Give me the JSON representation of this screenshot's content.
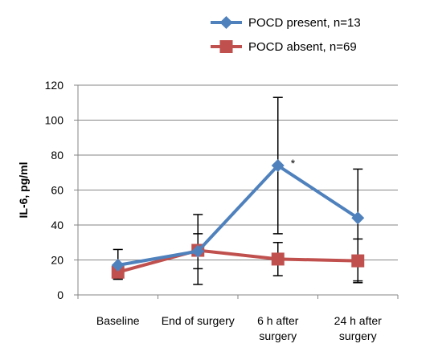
{
  "chart_data": {
    "type": "line",
    "categories": [
      "Baseline",
      "End of surgery",
      "6 h after surgery",
      "24 h after surgery"
    ],
    "category_lines": [
      [
        "Baseline"
      ],
      [
        "End of surgery"
      ],
      [
        "6 h after",
        "surgery"
      ],
      [
        "24 h after",
        "surgery"
      ]
    ],
    "series": [
      {
        "name": "POCD present,  n=13",
        "values": [
          17,
          25,
          74,
          44
        ],
        "err_low": [
          9,
          6,
          35,
          8
        ],
        "err_high": [
          26,
          46,
          113,
          72
        ],
        "color": "#4F81BD",
        "marker": "diamond"
      },
      {
        "name": "POCD absent,  n=69",
        "values": [
          13,
          25.5,
          20.5,
          19.5
        ],
        "err_low": [
          9,
          15,
          11,
          7
        ],
        "err_high": [
          14,
          35,
          30,
          32
        ],
        "color": "#C0504D",
        "marker": "square"
      }
    ],
    "ylabel": "IL-6, pg/ml",
    "ylim": [
      0,
      120
    ],
    "yticks": [
      "0",
      "20",
      "40",
      "60",
      "80",
      "100",
      "120"
    ],
    "grid": "horizontal",
    "legend_position": "top-right",
    "annotations": [
      {
        "text": "*",
        "category": "6 h after surgery",
        "value": 74
      }
    ]
  }
}
